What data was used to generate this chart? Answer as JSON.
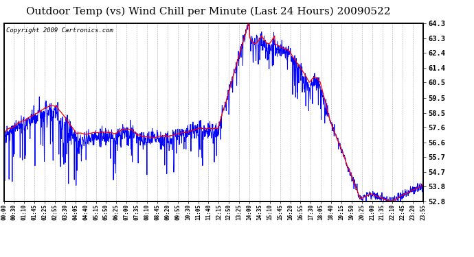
{
  "title": "Outdoor Temp (vs) Wind Chill per Minute (Last 24 Hours) 20090522",
  "copyright": "Copyright 2009 Cartronics.com",
  "ymin": 52.8,
  "ymax": 64.3,
  "yticks": [
    52.8,
    53.8,
    54.7,
    55.7,
    56.6,
    57.6,
    58.5,
    59.5,
    60.5,
    61.4,
    62.4,
    63.3,
    64.3
  ],
  "xtick_labels": [
    "00:00",
    "00:30",
    "01:10",
    "01:45",
    "02:25",
    "02:55",
    "03:30",
    "04:05",
    "04:40",
    "05:15",
    "05:50",
    "06:25",
    "07:00",
    "07:35",
    "08:10",
    "08:45",
    "09:20",
    "09:55",
    "10:30",
    "11:05",
    "11:40",
    "12:15",
    "12:50",
    "13:25",
    "14:00",
    "14:35",
    "15:10",
    "15:45",
    "16:20",
    "16:55",
    "17:30",
    "18:05",
    "18:40",
    "19:15",
    "19:50",
    "20:25",
    "21:00",
    "21:35",
    "22:10",
    "22:45",
    "23:20",
    "23:55"
  ],
  "background_color": "#ffffff",
  "plot_bg_color": "#ffffff",
  "grid_color": "#aaaaaa",
  "line_color_red": "#ff0000",
  "line_color_blue": "#0000ff",
  "title_fontsize": 11,
  "copyright_fontsize": 6.5
}
